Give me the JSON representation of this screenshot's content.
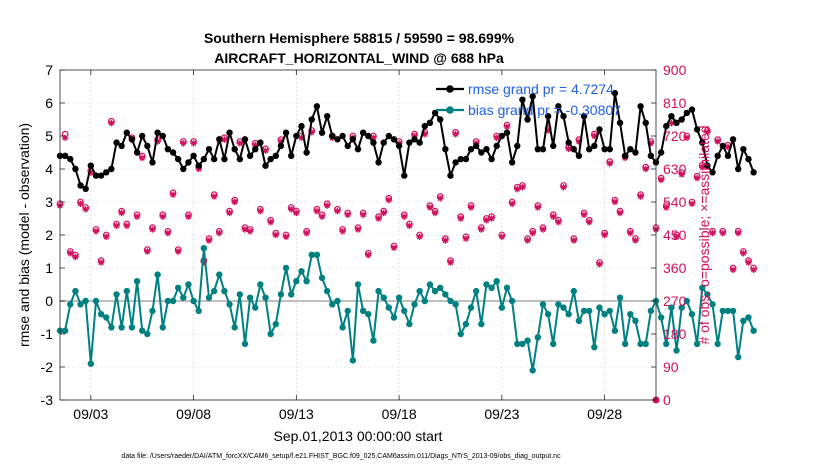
{
  "chart_data": {
    "type": "line",
    "title": "Southern Hemisphere 58815 / 59590 = 98.699%",
    "subtitle": "AIRCRAFT_HORIZONTAL_WIND @ 688 hPa",
    "xlabel": "Sep.01,2013 00:00:00 start",
    "ylabel": "rmse and bias (model - observation)",
    "y2label": "# of obs: o=possible; ×=assimilated",
    "footer": "data file: /Users/raeder/DAI/ATM_forcXX/CAM6_setup/f.e21.FHIST_BGC.f09_025.CAM6assim.011/Diags_NTrS_2013-09/obs_diag_output.nc",
    "xlim": [
      1.5,
      30.5
    ],
    "ylim": [
      -3,
      7
    ],
    "y2lim": [
      0,
      900
    ],
    "xticks": [
      {
        "v": 3,
        "label": "09/03"
      },
      {
        "v": 8,
        "label": "09/08"
      },
      {
        "v": 13,
        "label": "09/13"
      },
      {
        "v": 18,
        "label": "09/18"
      },
      {
        "v": 23,
        "label": "09/23"
      },
      {
        "v": 28,
        "label": "09/28"
      }
    ],
    "yticks": [
      "-3",
      "-2",
      "-1",
      "0",
      "1",
      "2",
      "3",
      "4",
      "5",
      "6",
      "7"
    ],
    "y2ticks": [
      "0",
      "90",
      "180",
      "270",
      "360",
      "450",
      "540",
      "630",
      "720",
      "810",
      "900"
    ],
    "grid": true,
    "legend_position": "top-right",
    "colors": {
      "rmse": "#000000",
      "bias": "#008080",
      "obs": "#d1105e",
      "zero_line": "#bfbfbf"
    },
    "series": [
      {
        "name": "rmse grand pr = 4.7274",
        "x_start": 1.5,
        "x_step": 0.25,
        "values": [
          4.4,
          4.4,
          4.3,
          4.0,
          3.5,
          3.4,
          4.1,
          3.8,
          3.8,
          3.9,
          4.0,
          4.8,
          4.7,
          5.1,
          4.9,
          4.5,
          5.0,
          4.7,
          4.2,
          5.1,
          5.0,
          4.6,
          4.5,
          4.3,
          4.0,
          4.2,
          4.4,
          4.1,
          4.3,
          4.6,
          4.3,
          4.9,
          4.3,
          5.1,
          4.6,
          4.3,
          4.9,
          4.4,
          4.6,
          4.8,
          4.1,
          4.3,
          4.4,
          4.7,
          5.1,
          4.4,
          5.0,
          5.3,
          4.5,
          5.5,
          5.9,
          5.1,
          5.6,
          5.0,
          4.9,
          5.0,
          4.7,
          4.9,
          4.6,
          5.1,
          5.0,
          4.8,
          4.2,
          4.8,
          5.0,
          4.9,
          4.7,
          3.8,
          4.8,
          4.9,
          4.8,
          5.3,
          5.4,
          5.7,
          5.5,
          4.6,
          3.8,
          4.2,
          4.3,
          4.3,
          4.6,
          4.7,
          4.5,
          4.6,
          4.3,
          4.7,
          5.0,
          5.1,
          4.2,
          4.7,
          6.1,
          5.5,
          6.2,
          4.6,
          4.6,
          5.6,
          4.7,
          5.9,
          5.6,
          4.8,
          4.6,
          4.4,
          5.6,
          4.6,
          4.7,
          5.2,
          4.6,
          4.6,
          6.3,
          5.4,
          4.4,
          4.6,
          4.5,
          5.9,
          5.4,
          4.4,
          4.2,
          4.5,
          5.3,
          5.6,
          5.4,
          5.5,
          5.7,
          5.8,
          5.2,
          4.8,
          4.1,
          3.9,
          4.4,
          4.7,
          4.4,
          4.9,
          4.0,
          4.6,
          4.3,
          3.9
        ]
      },
      {
        "name": "bias grand pr = -0.30807",
        "x_start": 1.5,
        "x_step": 0.25,
        "values": [
          -0.9,
          -0.9,
          -0.1,
          0.3,
          -0.1,
          0.0,
          -1.9,
          0.0,
          -0.4,
          -0.5,
          -0.8,
          0.2,
          -0.8,
          0.3,
          -0.8,
          0.6,
          -0.9,
          -1.0,
          -0.3,
          0.8,
          -0.8,
          0.0,
          0.0,
          0.4,
          0.1,
          0.5,
          0.0,
          -0.3,
          1.6,
          0.1,
          0.3,
          0.8,
          0.3,
          -0.1,
          -0.8,
          0.2,
          -1.3,
          0.1,
          -0.2,
          0.5,
          0.1,
          -1.0,
          -0.7,
          0.2,
          1.0,
          0.2,
          0.6,
          0.9,
          0.6,
          1.4,
          1.4,
          0.7,
          0.3,
          -0.1,
          0.0,
          -0.8,
          -0.3,
          -1.8,
          0.5,
          -0.3,
          -0.4,
          -1.2,
          0.3,
          0.1,
          -0.2,
          -0.5,
          0.1,
          -0.3,
          -0.7,
          -0.1,
          0.3,
          0.0,
          0.5,
          0.3,
          0.4,
          0.2,
          0.0,
          -0.1,
          -1.0,
          -0.7,
          -0.2,
          0.3,
          -0.7,
          0.5,
          0.4,
          0.6,
          -0.2,
          0.4,
          0.0,
          -1.3,
          -1.3,
          -1.2,
          -2.1,
          -1.1,
          -0.1,
          -0.4,
          -1.3,
          -0.1,
          -0.2,
          -0.4,
          0.3,
          -0.6,
          -0.3,
          -0.3,
          -1.4,
          -0.2,
          -0.4,
          -0.3,
          -0.9,
          0.1,
          -1.3,
          -0.4,
          -0.6,
          -1.3,
          -1.3,
          -0.3,
          0.0,
          -0.5,
          -1.3,
          -0.2,
          -1.5,
          -0.2,
          0.0,
          -0.4,
          -1.3,
          0.4,
          0.2,
          -0.1,
          -1.3,
          -0.3,
          -0.3,
          -0.3,
          -1.7,
          -0.6,
          -0.5,
          -0.9
        ]
      },
      {
        "name": "obs possible",
        "x_start": 1.5,
        "x_step": 0.25,
        "values": [
          535,
          725,
          405,
          395,
          540,
          525,
          625,
          465,
          380,
          450,
          760,
          480,
          515,
          480,
          715,
          505,
          665,
          410,
          470,
          710,
          505,
          460,
          565,
          410,
          705,
          505,
          705,
          635,
          380,
          440,
          560,
          460,
          715,
          515,
          545,
          705,
          470,
          465,
          700,
          520,
          685,
          490,
          455,
          710,
          450,
          525,
          515,
          720,
          460,
          735,
          520,
          505,
          535,
          720,
          520,
          465,
          510,
          720,
          470,
          510,
          400,
          720,
          500,
          515,
          550,
          420,
          705,
          505,
          480,
          725,
          450,
          730,
          530,
          515,
          555,
          440,
          380,
          730,
          500,
          445,
          530,
          705,
          470,
          495,
          500,
          720,
          450,
          750,
          540,
          580,
          585,
          440,
          460,
          530,
          470,
          740,
          505,
          490,
          585,
          690,
          440,
          710,
          510,
          490,
          725,
          375,
          455,
          650,
          545,
          515,
          665,
          460,
          440,
          560,
          635,
          705,
          470,
          605,
          530,
          760,
          450,
          620,
          720,
          540,
          610,
          640,
          735,
          460,
          710,
          460,
          695,
          360,
          460,
          405,
          380,
          360
        ]
      },
      {
        "name": "obs assimilated",
        "x_start": 1.5,
        "x_step": 0.25,
        "values": [
          530,
          715,
          400,
          390,
          535,
          520,
          620,
          460,
          375,
          445,
          755,
          475,
          510,
          475,
          710,
          500,
          660,
          405,
          465,
          705,
          500,
          455,
          560,
          405,
          700,
          500,
          700,
          630,
          375,
          435,
          555,
          455,
          710,
          510,
          540,
          700,
          465,
          460,
          695,
          515,
          680,
          485,
          450,
          705,
          445,
          520,
          510,
          715,
          455,
          730,
          515,
          500,
          530,
          715,
          515,
          460,
          505,
          715,
          465,
          505,
          395,
          715,
          495,
          510,
          545,
          415,
          700,
          500,
          475,
          720,
          445,
          725,
          525,
          510,
          550,
          435,
          375,
          725,
          495,
          440,
          525,
          700,
          465,
          490,
          495,
          715,
          445,
          745,
          535,
          575,
          580,
          435,
          455,
          525,
          465,
          735,
          500,
          485,
          580,
          685,
          435,
          705,
          505,
          485,
          720,
          370,
          450,
          645,
          540,
          510,
          660,
          455,
          435,
          555,
          630,
          700,
          465,
          600,
          525,
          755,
          445,
          615,
          715,
          535,
          605,
          635,
          730,
          455,
          705,
          455,
          690,
          355,
          455,
          400,
          375,
          355
        ]
      }
    ]
  }
}
